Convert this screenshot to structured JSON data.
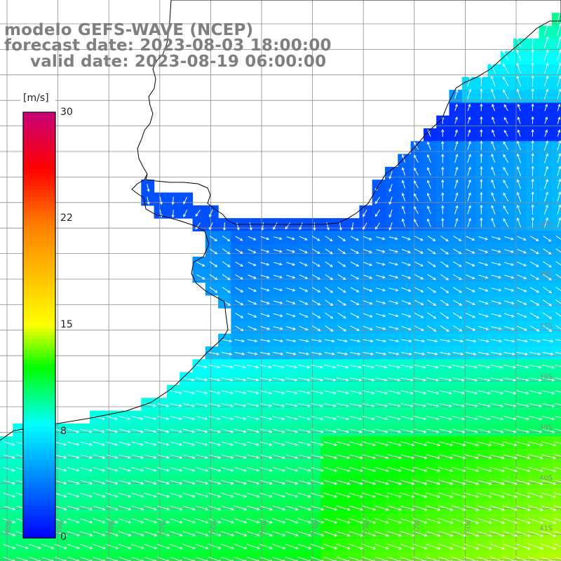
{
  "header": {
    "model": "modelo GEFS-WAVE (NCEP)",
    "forecast": "forecast date: 2023-08-03 18:00:00",
    "valid": "valid date: 2023-08-19 06:00:00"
  },
  "colorbar": {
    "unit": "[m/s]",
    "ticks": [
      "30",
      "22",
      "15",
      "8",
      "0"
    ],
    "tick_values": [
      30,
      22,
      15,
      8,
      0
    ],
    "range": [
      0,
      30
    ],
    "colors": {
      "v0": "#0000ff",
      "v4": "#0080ff",
      "v8": "#00ffff",
      "v12": "#00ff00",
      "v15": "#ffff00",
      "v22": "#ff8000",
      "v26": "#ff0000",
      "v30": "#c8007a"
    }
  },
  "lat_labels": [
    "35S",
    "36S",
    "37S",
    "38S",
    "39S",
    "40S",
    "41S"
  ],
  "lon_labels": [
    "60W",
    "59W",
    "58W",
    "57W",
    "56W",
    "55W",
    "54W",
    "53W",
    "52W",
    "51W"
  ],
  "map": {
    "field": "wind speed",
    "land_color": "#ffffff",
    "grid_color": "#8c8c8c",
    "coast_color": "#000000",
    "arrow_color": "#ffffff"
  }
}
